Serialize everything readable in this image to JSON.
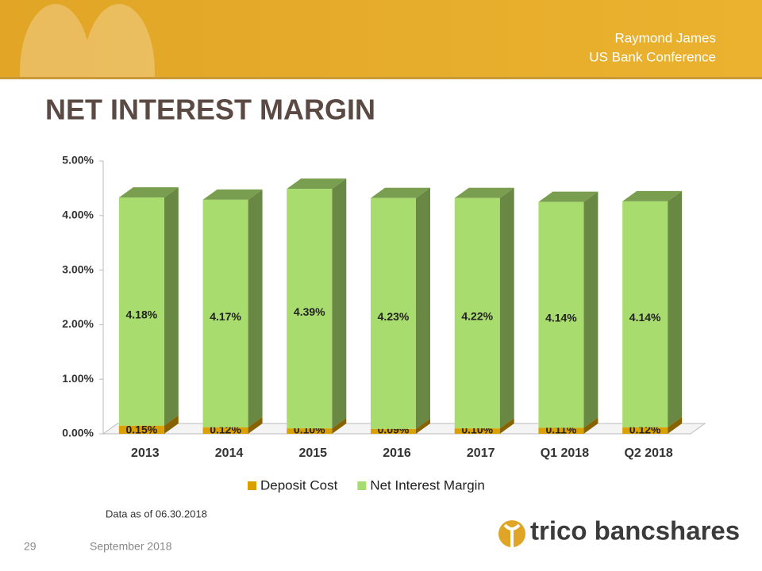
{
  "header": {
    "line1": "Raymond James",
    "line2": "US Bank Conference"
  },
  "title": "NET INTEREST MARGIN",
  "chart_data": {
    "type": "stacked_bar_3d",
    "categories": [
      "2013",
      "2014",
      "2015",
      "2016",
      "2017",
      "Q1 2018",
      "Q2 2018"
    ],
    "series": [
      {
        "name": "Deposit Cost",
        "color": "#d9a000",
        "values": [
          0.15,
          0.12,
          0.1,
          0.09,
          0.1,
          0.11,
          0.12
        ],
        "value_labels": [
          "0.15%",
          "0.12%",
          "0.10%",
          "0.09%",
          "0.10%",
          "0.11%",
          "0.12%"
        ]
      },
      {
        "name": "Net Interest Margin",
        "color": "#a9dc6e",
        "values": [
          4.18,
          4.17,
          4.39,
          4.23,
          4.22,
          4.14,
          4.14
        ],
        "value_labels": [
          "4.18%",
          "4.17%",
          "4.39%",
          "4.23%",
          "4.22%",
          "4.14%",
          "4.14%"
        ]
      }
    ],
    "ylim": [
      0,
      5
    ],
    "yticks": [
      {
        "value": 0,
        "label": "0.00%"
      },
      {
        "value": 1,
        "label": "1.00%"
      },
      {
        "value": 2,
        "label": "2.00%"
      },
      {
        "value": 3,
        "label": "3.00%"
      },
      {
        "value": 4,
        "label": "4.00%"
      },
      {
        "value": 5,
        "label": "5.00%"
      }
    ],
    "legend": "bottom"
  },
  "note": "Data as of 06.30.2018",
  "footer": {
    "page": "29",
    "date": "September 2018",
    "logo": "trico bancshares"
  }
}
